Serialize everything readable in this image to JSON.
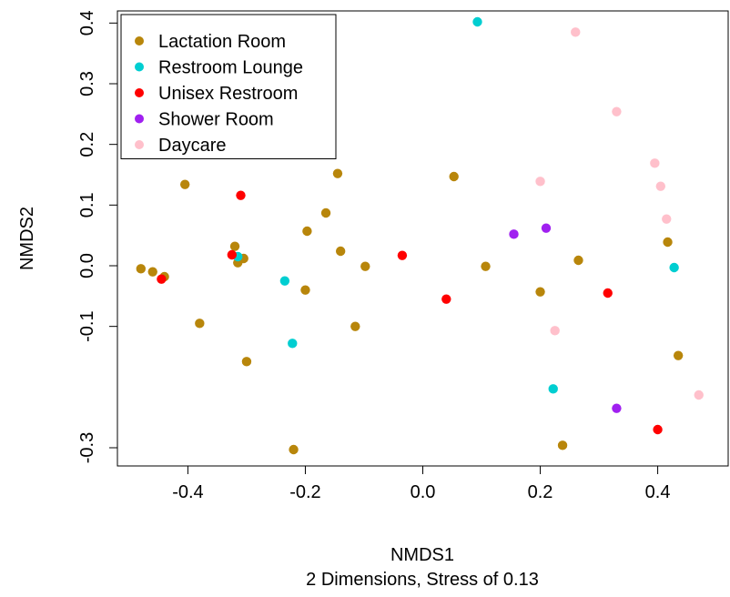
{
  "chart_data": {
    "type": "scatter",
    "title": "",
    "xlabel": "NMDS1",
    "ylabel": "NMDS2",
    "subtitle": "2 Dimensions, Stress of 0.13",
    "xlim": [
      -0.52,
      0.52
    ],
    "ylim": [
      -0.33,
      0.42
    ],
    "x_ticks": [
      -0.4,
      -0.2,
      0.0,
      0.2,
      0.4
    ],
    "x_tick_labels": [
      "-0.4",
      "-0.2",
      "0.0",
      "0.2",
      "0.4"
    ],
    "y_ticks": [
      -0.3,
      -0.1,
      0.0,
      0.1,
      0.2,
      0.3,
      0.4
    ],
    "y_tick_labels": [
      "-0.3",
      "-0.1",
      "0.0",
      "0.1",
      "0.2",
      "0.3",
      "0.4"
    ],
    "legend_position": "top-left",
    "grid": false,
    "series": [
      {
        "name": "Lactation Room",
        "color": "#b8860b",
        "points": [
          [
            -0.48,
            -0.005
          ],
          [
            -0.46,
            -0.01
          ],
          [
            -0.44,
            -0.018
          ],
          [
            -0.405,
            0.134
          ],
          [
            -0.38,
            -0.095
          ],
          [
            -0.32,
            0.032
          ],
          [
            -0.315,
            0.005
          ],
          [
            -0.305,
            0.012
          ],
          [
            -0.3,
            -0.158
          ],
          [
            -0.22,
            -0.303
          ],
          [
            -0.2,
            -0.04
          ],
          [
            -0.197,
            0.057
          ],
          [
            -0.165,
            0.087
          ],
          [
            -0.145,
            0.152
          ],
          [
            -0.14,
            0.024
          ],
          [
            -0.115,
            -0.1
          ],
          [
            -0.098,
            -0.001
          ],
          [
            0.053,
            0.147
          ],
          [
            0.107,
            -0.001
          ],
          [
            0.2,
            -0.043
          ],
          [
            0.238,
            -0.296
          ],
          [
            0.265,
            0.009
          ],
          [
            0.417,
            0.039
          ],
          [
            0.435,
            -0.148
          ]
        ]
      },
      {
        "name": "Restroom Lounge",
        "color": "#00ced1",
        "points": [
          [
            -0.315,
            0.015
          ],
          [
            -0.235,
            -0.025
          ],
          [
            -0.222,
            -0.128
          ],
          [
            0.093,
            0.402
          ],
          [
            0.222,
            -0.203
          ],
          [
            0.428,
            -0.003
          ]
        ]
      },
      {
        "name": "Unisex Restroom",
        "color": "#ff0000",
        "points": [
          [
            -0.445,
            -0.022
          ],
          [
            -0.325,
            0.018
          ],
          [
            -0.31,
            0.116
          ],
          [
            -0.035,
            0.017
          ],
          [
            0.04,
            -0.055
          ],
          [
            0.315,
            -0.045
          ],
          [
            0.4,
            -0.27
          ]
        ]
      },
      {
        "name": "Shower Room",
        "color": "#a020f0",
        "points": [
          [
            0.155,
            0.052
          ],
          [
            0.21,
            0.062
          ],
          [
            0.33,
            -0.235
          ]
        ]
      },
      {
        "name": "Daycare",
        "color": "#ffc0cb",
        "points": [
          [
            0.26,
            0.385
          ],
          [
            0.33,
            0.254
          ],
          [
            0.2,
            0.139
          ],
          [
            0.225,
            -0.107
          ],
          [
            0.395,
            0.169
          ],
          [
            0.405,
            0.131
          ],
          [
            0.415,
            0.077
          ],
          [
            0.47,
            -0.213
          ]
        ]
      }
    ]
  }
}
